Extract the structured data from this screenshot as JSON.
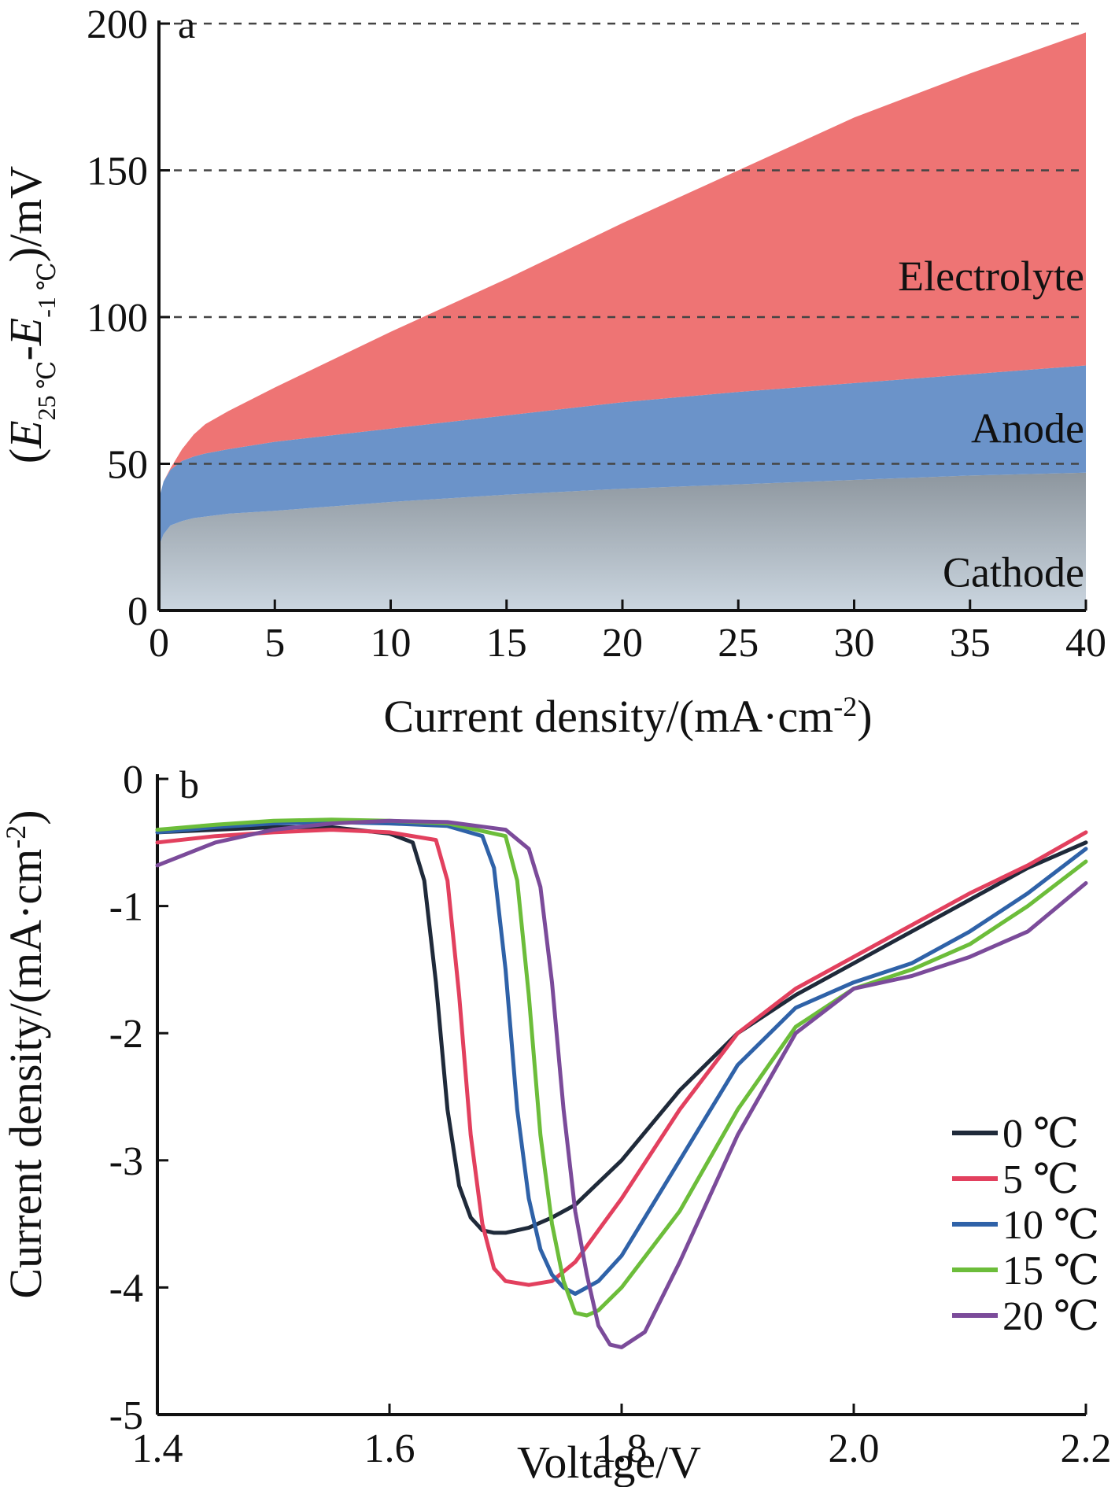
{
  "chart_data": [
    {
      "panel_label": "a",
      "type": "area",
      "xlabel": "Current density/(mA·cm",
      "xlabel_sup": "-2",
      "xlabel_end": ")",
      "ylabel_parts": [
        "(",
        "E",
        "25 ℃",
        "-",
        "E",
        "-1 ℃",
        ")/mV"
      ],
      "xlim": [
        0,
        40
      ],
      "ylim": [
        0,
        200
      ],
      "xticks": [
        0,
        5,
        10,
        15,
        20,
        25,
        30,
        35,
        40
      ],
      "xtick_labels": [
        "0",
        "5",
        "10",
        "15",
        "20",
        "25",
        "30",
        "35",
        "40"
      ],
      "yticks": [
        0,
        50,
        100,
        150,
        200
      ],
      "ytick_labels": [
        "0",
        "50",
        "100",
        "150",
        "200"
      ],
      "grid_y_dashed": [
        50,
        100,
        150,
        200
      ],
      "stacked_series": [
        {
          "name": "Cathode",
          "color": "#b7c2cc",
          "x": [
            0,
            0.2,
            0.5,
            1,
            1.5,
            2,
            3,
            5,
            10,
            15,
            20,
            25,
            30,
            35,
            40
          ],
          "top": [
            22,
            26,
            29,
            30.5,
            31.5,
            32,
            33,
            34,
            37,
            39.5,
            41.5,
            43,
            44.5,
            46,
            47
          ]
        },
        {
          "name": "Anode",
          "color": "#6b93c9",
          "x": [
            0,
            0.2,
            0.5,
            1,
            1.5,
            2,
            3,
            5,
            10,
            15,
            20,
            25,
            30,
            35,
            40
          ],
          "top": [
            38,
            44,
            48,
            51,
            52.5,
            53.5,
            55,
            57.5,
            62,
            66.5,
            71,
            74.5,
            77.5,
            80.5,
            83.5
          ]
        },
        {
          "name": "Electrolyte",
          "color": "#ee7474",
          "x": [
            0,
            0.2,
            0.5,
            1,
            1.5,
            2,
            3,
            5,
            10,
            15,
            20,
            25,
            30,
            35,
            40
          ],
          "top": [
            38,
            44,
            48.5,
            55,
            60,
            63.5,
            68,
            76,
            95,
            113,
            132,
            150,
            168,
            183,
            197
          ]
        }
      ],
      "region_labels": [
        "Electrolyte",
        "Anode",
        "Cathode"
      ]
    },
    {
      "panel_label": "b",
      "type": "line",
      "xlabel": "Voltage/V",
      "ylabel": "Current density/(mA·cm",
      "ylabel_sup": "-2",
      "ylabel_end": ")",
      "xlim": [
        1.4,
        2.2
      ],
      "ylim": [
        -5,
        0
      ],
      "xticks": [
        1.4,
        1.6,
        1.8,
        2.0,
        2.2
      ],
      "xtick_labels": [
        "1.4",
        "1.6",
        "1.8",
        "2.0",
        "2.2"
      ],
      "yticks": [
        0,
        -1,
        -2,
        -3,
        -4,
        -5
      ],
      "ytick_labels": [
        "0",
        "-1",
        "-2",
        "-3",
        "-4",
        "-5"
      ],
      "legend_position": "bottom-right",
      "series": [
        {
          "name": "0 ℃",
          "color": "#1f2a3a",
          "x": [
            1.4,
            1.45,
            1.5,
            1.55,
            1.6,
            1.62,
            1.63,
            1.64,
            1.65,
            1.66,
            1.67,
            1.68,
            1.69,
            1.7,
            1.72,
            1.74,
            1.76,
            1.8,
            1.85,
            1.9,
            1.95,
            2.0,
            2.05,
            2.1,
            2.15,
            2.2
          ],
          "y": [
            -0.42,
            -0.4,
            -0.38,
            -0.38,
            -0.43,
            -0.5,
            -0.8,
            -1.6,
            -2.6,
            -3.2,
            -3.45,
            -3.55,
            -3.57,
            -3.57,
            -3.53,
            -3.45,
            -3.35,
            -3.0,
            -2.45,
            -2.0,
            -1.7,
            -1.45,
            -1.2,
            -0.95,
            -0.7,
            -0.5
          ]
        },
        {
          "name": "5 ℃",
          "color": "#e2405e",
          "x": [
            1.4,
            1.45,
            1.5,
            1.55,
            1.6,
            1.64,
            1.65,
            1.66,
            1.67,
            1.68,
            1.69,
            1.7,
            1.72,
            1.74,
            1.76,
            1.78,
            1.8,
            1.85,
            1.9,
            1.95,
            2.0,
            2.05,
            2.1,
            2.15,
            2.2
          ],
          "y": [
            -0.5,
            -0.45,
            -0.42,
            -0.4,
            -0.42,
            -0.48,
            -0.8,
            -1.7,
            -2.8,
            -3.5,
            -3.85,
            -3.95,
            -3.98,
            -3.95,
            -3.8,
            -3.55,
            -3.3,
            -2.6,
            -2.0,
            -1.65,
            -1.4,
            -1.15,
            -0.9,
            -0.68,
            -0.42
          ]
        },
        {
          "name": "10 ℃",
          "color": "#2f62a8",
          "x": [
            1.4,
            1.45,
            1.5,
            1.55,
            1.6,
            1.65,
            1.68,
            1.69,
            1.7,
            1.71,
            1.72,
            1.73,
            1.74,
            1.75,
            1.76,
            1.78,
            1.8,
            1.85,
            1.9,
            1.95,
            2.0,
            2.05,
            2.1,
            2.15,
            2.2
          ],
          "y": [
            -0.42,
            -0.38,
            -0.35,
            -0.34,
            -0.35,
            -0.37,
            -0.45,
            -0.7,
            -1.5,
            -2.6,
            -3.3,
            -3.7,
            -3.9,
            -4.0,
            -4.05,
            -3.95,
            -3.75,
            -3.0,
            -2.25,
            -1.8,
            -1.6,
            -1.45,
            -1.2,
            -0.9,
            -0.55
          ]
        },
        {
          "name": "15 ℃",
          "color": "#6cbd3a",
          "x": [
            1.4,
            1.45,
            1.5,
            1.55,
            1.6,
            1.65,
            1.7,
            1.71,
            1.72,
            1.73,
            1.74,
            1.75,
            1.76,
            1.77,
            1.78,
            1.8,
            1.85,
            1.9,
            1.95,
            2.0,
            2.05,
            2.1,
            2.15,
            2.2
          ],
          "y": [
            -0.4,
            -0.36,
            -0.33,
            -0.32,
            -0.33,
            -0.35,
            -0.45,
            -0.8,
            -1.7,
            -2.8,
            -3.5,
            -3.95,
            -4.2,
            -4.22,
            -4.18,
            -4.0,
            -3.4,
            -2.6,
            -1.95,
            -1.65,
            -1.5,
            -1.3,
            -1.0,
            -0.65
          ]
        },
        {
          "name": "20 ℃",
          "color": "#7b4b9a",
          "x": [
            1.4,
            1.45,
            1.5,
            1.55,
            1.6,
            1.65,
            1.7,
            1.72,
            1.73,
            1.74,
            1.75,
            1.76,
            1.77,
            1.78,
            1.79,
            1.8,
            1.82,
            1.85,
            1.9,
            1.95,
            2.0,
            2.05,
            2.1,
            2.15,
            2.2
          ],
          "y": [
            -0.68,
            -0.5,
            -0.4,
            -0.35,
            -0.33,
            -0.34,
            -0.4,
            -0.55,
            -0.85,
            -1.6,
            -2.6,
            -3.4,
            -3.9,
            -4.3,
            -4.45,
            -4.47,
            -4.35,
            -3.8,
            -2.8,
            -2.0,
            -1.65,
            -1.55,
            -1.4,
            -1.2,
            -0.82
          ]
        }
      ]
    }
  ]
}
